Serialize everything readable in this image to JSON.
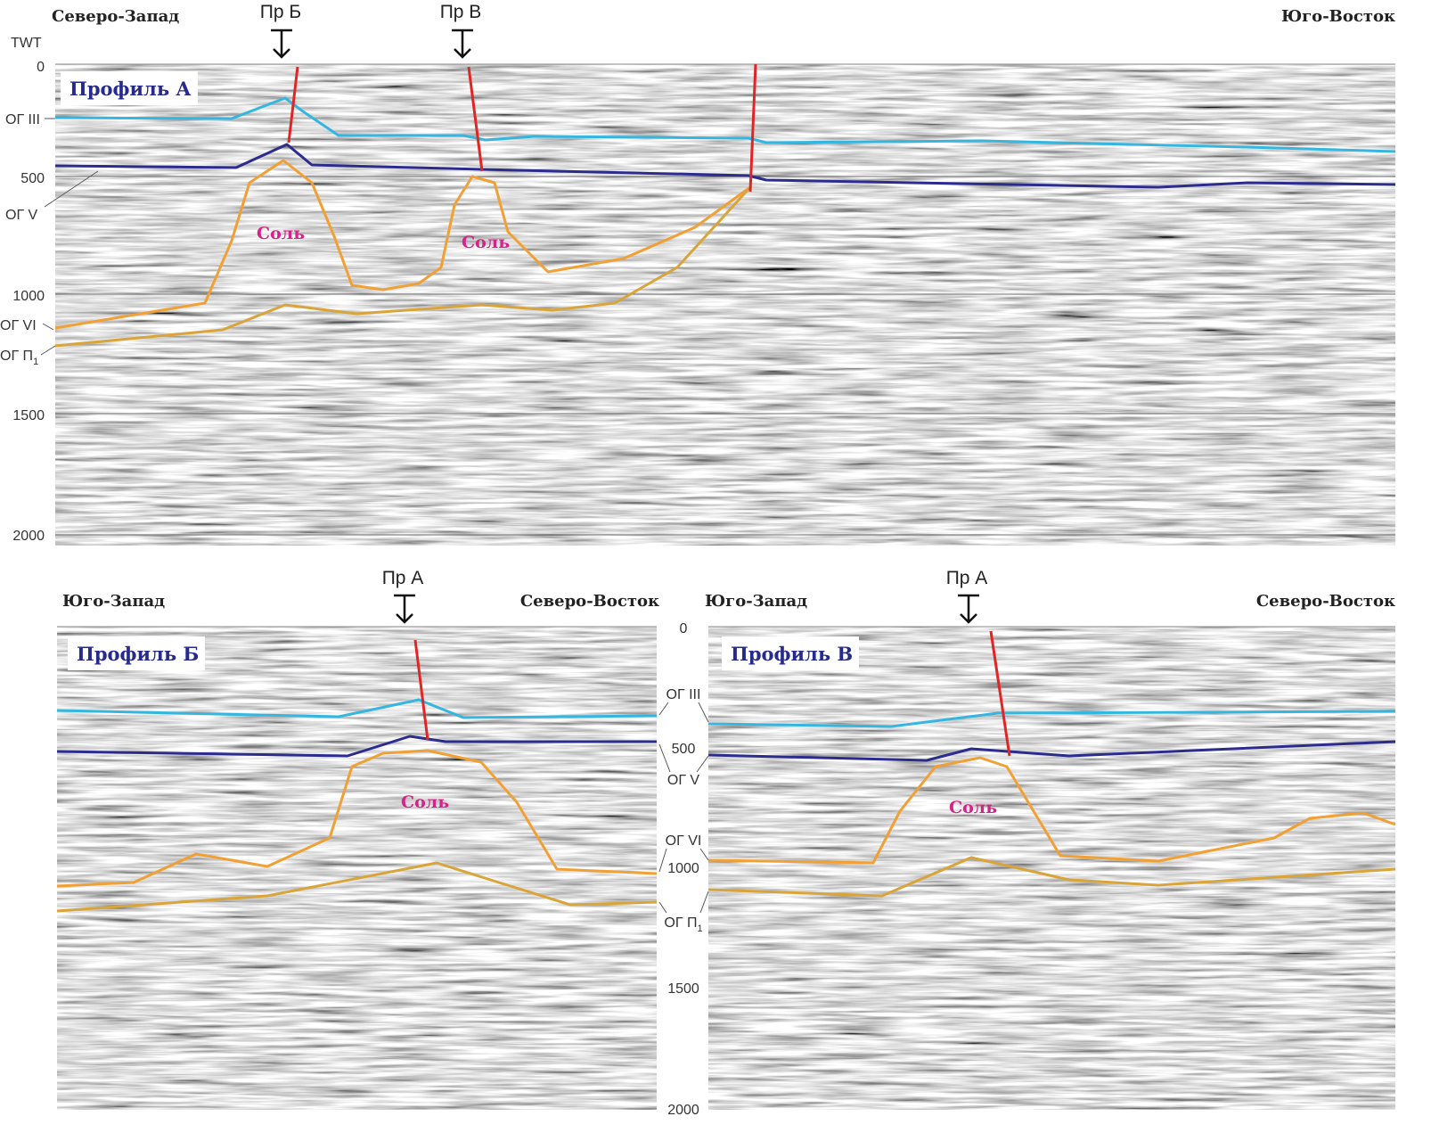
{
  "colors": {
    "og_iii": "#35b6e0",
    "og_v": "#2c2c8f",
    "og_vi": "#f0a035",
    "og_p1": "#d9a53a",
    "fault": "#e02525",
    "salt_label": "#d6238a",
    "profile_title": "#262a8a"
  },
  "axis_title": "TWT",
  "ticks": [
    "0",
    "500",
    "1000",
    "1500",
    "2000"
  ],
  "horizons": {
    "og_iii": "ОГ III",
    "og_v": "ОГ V",
    "og_vi": "ОГ VI",
    "og_p": "ОГ П",
    "og_p_sub": "1"
  },
  "salt_label": "Соль",
  "profile_a": {
    "title": "Профиль А",
    "left_dir": "Северо-Запад",
    "right_dir": "Юго-Восток",
    "crossings": [
      "Пр Б",
      "Пр В"
    ]
  },
  "profile_b": {
    "title": "Профиль Б",
    "left_dir": "Юго-Запад",
    "right_dir": "Северо-Восток",
    "crossing": "Пр А"
  },
  "profile_c": {
    "title": "Профиль В",
    "left_dir": "Юго-Запад",
    "right_dir": "Северо-Восток",
    "crossing": "Пр А"
  }
}
